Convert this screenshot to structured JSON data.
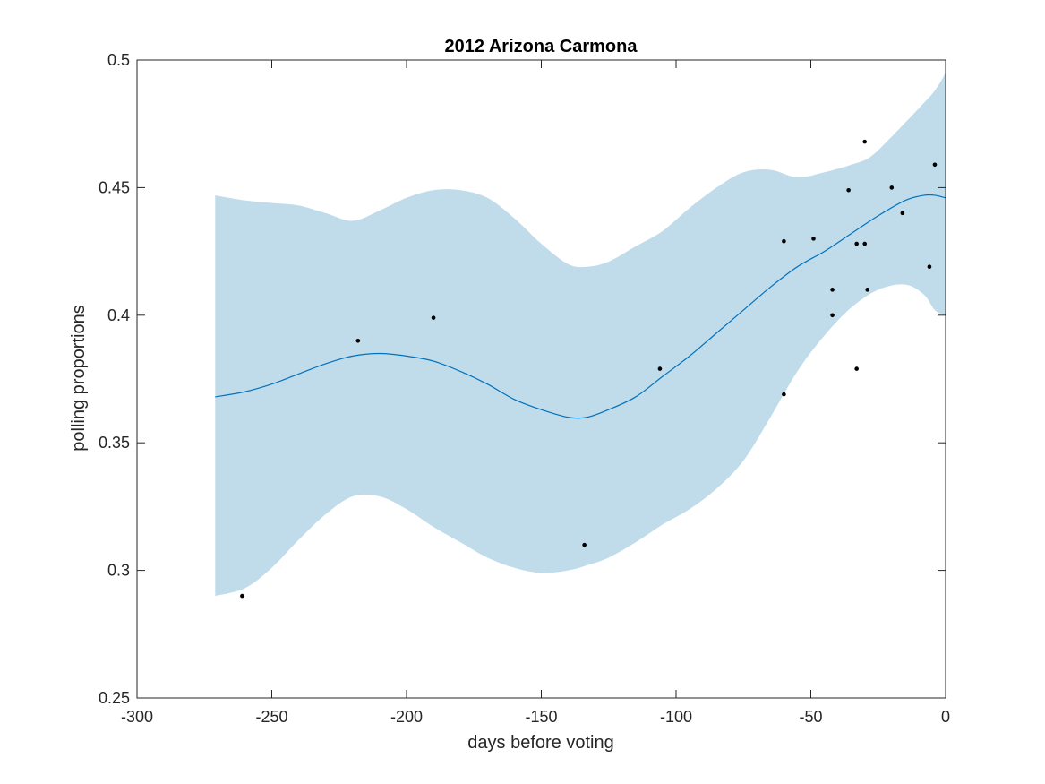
{
  "chart_data": {
    "type": "scatter",
    "title": "2012 Arizona Carmona",
    "xlabel": "days before voting",
    "ylabel": "polling proportions",
    "xlim": [
      -300,
      0
    ],
    "ylim": [
      0.25,
      0.5
    ],
    "xticks": [
      -300,
      -250,
      -200,
      -150,
      -100,
      -50,
      0
    ],
    "xtick_labels": [
      "-300",
      "-250",
      "-200",
      "-150",
      "-100",
      "-50",
      "0"
    ],
    "yticks": [
      0.25,
      0.3,
      0.35,
      0.4,
      0.45,
      0.5
    ],
    "ytick_labels": [
      "0.25",
      "0.3",
      "0.35",
      "0.4",
      "0.45",
      "0.5"
    ],
    "grid": false,
    "colors": {
      "band": "#c0dcea",
      "line": "#0072bd",
      "points": "#000000",
      "axes": "#262626"
    },
    "points": {
      "x": [
        -261,
        -218,
        -190,
        -134,
        -106,
        -60,
        -60,
        -49,
        -42,
        -42,
        -36,
        -33,
        -33,
        -30,
        -30,
        -29,
        -20,
        -16,
        -6,
        -4
      ],
      "y": [
        0.29,
        0.39,
        0.399,
        0.31,
        0.379,
        0.429,
        0.369,
        0.43,
        0.41,
        0.4,
        0.449,
        0.428,
        0.379,
        0.428,
        0.468,
        0.41,
        0.45,
        0.44,
        0.419,
        0.459
      ]
    },
    "fit": {
      "x": [
        -271,
        -260,
        -250,
        -240,
        -230,
        -220,
        -210,
        -200,
        -190,
        -180,
        -170,
        -160,
        -150,
        -140,
        -133,
        -125,
        -115,
        -105,
        -95,
        -85,
        -75,
        -65,
        -55,
        -45,
        -35,
        -25,
        -15,
        -8,
        -4,
        0
      ],
      "y": [
        0.368,
        0.37,
        0.373,
        0.377,
        0.381,
        0.384,
        0.385,
        0.384,
        0.382,
        0.378,
        0.373,
        0.367,
        0.363,
        0.36,
        0.36,
        0.363,
        0.368,
        0.376,
        0.384,
        0.393,
        0.402,
        0.411,
        0.419,
        0.425,
        0.432,
        0.439,
        0.445,
        0.447,
        0.447,
        0.446
      ]
    },
    "band_upper": {
      "x": [
        -271,
        -260,
        -250,
        -240,
        -230,
        -220,
        -210,
        -200,
        -190,
        -180,
        -170,
        -160,
        -150,
        -140,
        -133,
        -125,
        -115,
        -105,
        -95,
        -85,
        -75,
        -65,
        -55,
        -45,
        -35,
        -28,
        -20,
        -10,
        -4,
        0
      ],
      "y": [
        0.447,
        0.445,
        0.444,
        0.443,
        0.44,
        0.437,
        0.441,
        0.446,
        0.449,
        0.449,
        0.446,
        0.438,
        0.428,
        0.42,
        0.419,
        0.421,
        0.427,
        0.433,
        0.442,
        0.45,
        0.456,
        0.457,
        0.454,
        0.456,
        0.459,
        0.462,
        0.47,
        0.481,
        0.488,
        0.495
      ]
    },
    "band_lower": {
      "x": [
        -271,
        -260,
        -250,
        -240,
        -230,
        -220,
        -210,
        -200,
        -190,
        -180,
        -170,
        -160,
        -150,
        -140,
        -133,
        -125,
        -115,
        -105,
        -95,
        -85,
        -75,
        -65,
        -55,
        -45,
        -35,
        -25,
        -15,
        -8,
        -4,
        0
      ],
      "y": [
        0.29,
        0.293,
        0.301,
        0.312,
        0.322,
        0.329,
        0.329,
        0.324,
        0.317,
        0.311,
        0.305,
        0.301,
        0.299,
        0.3,
        0.302,
        0.305,
        0.311,
        0.318,
        0.324,
        0.332,
        0.343,
        0.36,
        0.378,
        0.392,
        0.403,
        0.41,
        0.412,
        0.408,
        0.402,
        0.4
      ]
    }
  }
}
